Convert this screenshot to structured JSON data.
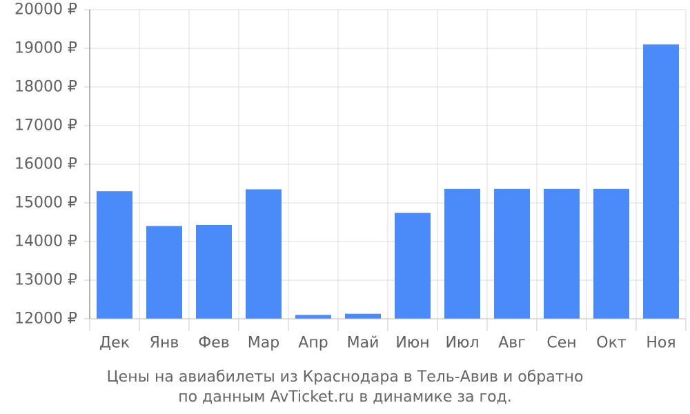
{
  "chart_data": {
    "type": "bar",
    "categories": [
      "Дек",
      "Янв",
      "Фев",
      "Мар",
      "Апр",
      "Май",
      "Июн",
      "Июл",
      "Авг",
      "Сен",
      "Окт",
      "Ноя"
    ],
    "values": [
      15300,
      14400,
      14430,
      15350,
      12100,
      12130,
      14740,
      15360,
      15360,
      15360,
      15360,
      19100
    ],
    "ylim": [
      12000,
      20000
    ],
    "yticks": [
      12000,
      13000,
      14000,
      15000,
      16000,
      17000,
      18000,
      19000,
      20000
    ],
    "ytick_suffix": " ₽",
    "grid": true,
    "bar_color": "#4b8bf9",
    "caption_line1": "Цены на авиабилеты из Краснодара в Тель-Авив и обратно",
    "caption_line2": "по данным AvTicket.ru в динамике за год."
  }
}
